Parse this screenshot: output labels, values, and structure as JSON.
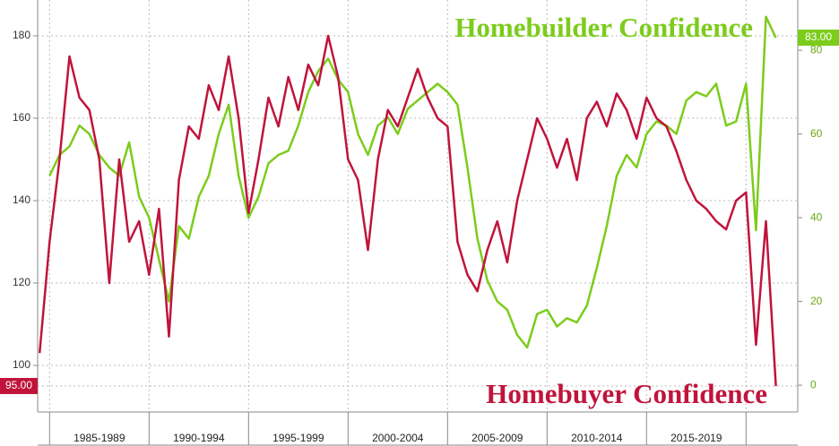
{
  "chart_data": {
    "type": "line",
    "x": [
      1984.5,
      1985,
      1985.5,
      1986,
      1986.5,
      1987,
      1987.5,
      1988,
      1988.5,
      1989,
      1989.5,
      1990,
      1990.5,
      1991,
      1991.5,
      1992,
      1992.5,
      1993,
      1993.5,
      1994,
      1994.5,
      1995,
      1995.5,
      1996,
      1996.5,
      1997,
      1997.5,
      1998,
      1998.5,
      1999,
      1999.5,
      2000,
      2000.5,
      2001,
      2001.5,
      2002,
      2002.5,
      2003,
      2003.5,
      2004,
      2004.5,
      2005,
      2005.5,
      2006,
      2006.5,
      2007,
      2007.5,
      2008,
      2008.5,
      2009,
      2009.5,
      2010,
      2010.5,
      2011,
      2011.5,
      2012,
      2012.5,
      2013,
      2013.5,
      2014,
      2014.5,
      2015,
      2015.5,
      2016,
      2016.5,
      2017,
      2017.5,
      2018,
      2018.5,
      2019,
      2019.5,
      2020,
      2020.5,
      2021,
      2021.5
    ],
    "series": [
      {
        "name": "Homebuilder Confidence",
        "color": "#7ccc1c",
        "axis": "y2",
        "end_label": "83.00",
        "values": [
          null,
          50,
          55,
          57,
          62,
          60,
          55,
          52,
          50,
          58,
          45,
          40,
          30,
          20,
          38,
          35,
          45,
          50,
          60,
          67,
          50,
          40,
          45,
          53,
          55,
          56,
          62,
          70,
          75,
          78,
          73,
          70,
          60,
          55,
          62,
          64,
          60,
          66,
          68,
          70,
          72,
          70,
          67,
          52,
          35,
          25,
          20,
          18,
          12,
          9,
          17,
          18,
          14,
          16,
          15,
          19,
          28,
          38,
          50,
          55,
          52,
          60,
          63,
          62,
          60,
          68,
          70,
          69,
          72,
          62,
          63,
          72,
          37,
          88,
          83
        ]
      },
      {
        "name": "Homebuyer Confidence",
        "color": "#c0143c",
        "end_label": "95.00",
        "values": [
          103,
          130,
          150,
          175,
          165,
          162,
          150,
          120,
          150,
          130,
          135,
          122,
          138,
          107,
          145,
          158,
          155,
          168,
          162,
          175,
          160,
          137,
          150,
          165,
          158,
          170,
          162,
          173,
          168,
          180,
          170,
          150,
          145,
          128,
          150,
          162,
          158,
          165,
          172,
          165,
          160,
          158,
          130,
          122,
          118,
          128,
          135,
          125,
          140,
          150,
          160,
          155,
          148,
          155,
          145,
          160,
          164,
          158,
          166,
          162,
          155,
          165,
          160,
          158,
          152,
          145,
          140,
          138,
          135,
          133,
          140,
          142,
          105,
          135,
          95
        ]
      }
    ],
    "xlim": [
      1984.4,
      2022.6
    ],
    "xticks": [
      1985,
      1990,
      1995,
      2000,
      2005,
      2010,
      2015,
      2020
    ],
    "x_periods": [
      {
        "label": "1985-1989",
        "from": 1985,
        "to": 1990
      },
      {
        "label": "1990-1994",
        "from": 1990,
        "to": 1995
      },
      {
        "label": "1995-1999",
        "from": 1995,
        "to": 2000
      },
      {
        "label": "2000-2004",
        "from": 2000,
        "to": 2005
      },
      {
        "label": "2005-2009",
        "from": 2005,
        "to": 2010
      },
      {
        "label": "2010-2014",
        "from": 2010,
        "to": 2015
      },
      {
        "label": "2015-2019",
        "from": 2015,
        "to": 2020
      }
    ],
    "ylim": [
      88.7,
      188.7
    ],
    "yticks": [
      100,
      120,
      140,
      160,
      180
    ],
    "y2lim": [
      -6.4,
      92
    ],
    "y2ticks": [
      0,
      20,
      40,
      60,
      80
    ],
    "grid": true
  }
}
